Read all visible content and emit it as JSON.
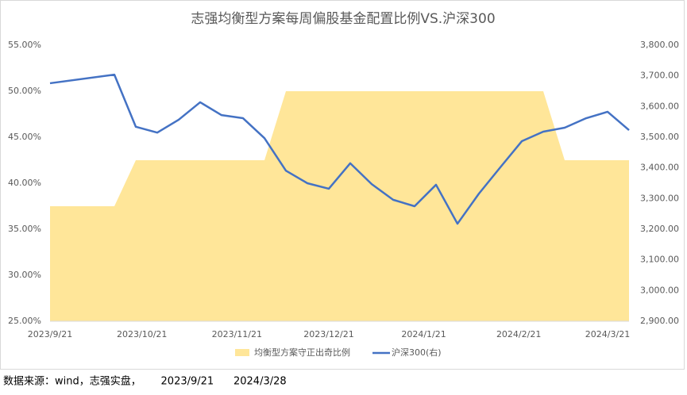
{
  "chart_data": {
    "type": "area_line",
    "title": "志强均衡型方案每周偏股基金配置比例VS.沪深300",
    "x": [
      0,
      21,
      28,
      35,
      42,
      49,
      56,
      63,
      70,
      77,
      84,
      91,
      98,
      105,
      112,
      119,
      126,
      133,
      140,
      147,
      154,
      161,
      168,
      175,
      182,
      189
    ],
    "xlim": [
      0,
      189
    ],
    "xticks": [
      {
        "value": 0,
        "label": "2023/9/21"
      },
      {
        "value": 30,
        "label": "2023/10/21"
      },
      {
        "value": 61,
        "label": "2023/11/21"
      },
      {
        "value": 91,
        "label": "2023/12/21"
      },
      {
        "value": 122,
        "label": "2024/1/21"
      },
      {
        "value": 153,
        "label": "2024/2/21"
      },
      {
        "value": 182,
        "label": "2024/3/21"
      }
    ],
    "ylim": [
      25,
      55
    ],
    "yticks": [
      {
        "value": 25,
        "label": "25.00%"
      },
      {
        "value": 30,
        "label": "30.00%"
      },
      {
        "value": 35,
        "label": "35.00%"
      },
      {
        "value": 40,
        "label": "40.00%"
      },
      {
        "value": 45,
        "label": "45.00%"
      },
      {
        "value": 50,
        "label": "50.00%"
      },
      {
        "value": 55,
        "label": "55.00%"
      }
    ],
    "y2lim": [
      2900,
      3800
    ],
    "y2ticks": [
      {
        "value": 2900,
        "label": "2,900.00"
      },
      {
        "value": 3000,
        "label": "3,000.00"
      },
      {
        "value": 3100,
        "label": "3,100.00"
      },
      {
        "value": 3200,
        "label": "3,200.00"
      },
      {
        "value": 3300,
        "label": "3,300.00"
      },
      {
        "value": 3400,
        "label": "3,400.00"
      },
      {
        "value": 3500,
        "label": "3,500.00"
      },
      {
        "value": 3600,
        "label": "3,600.00"
      },
      {
        "value": 3700,
        "label": "3,700.00"
      },
      {
        "value": 3800,
        "label": "3,800.00"
      }
    ],
    "series": [
      {
        "name": "均衡型方案守正出奇比例",
        "kind": "area",
        "color": "#ffe699",
        "values": [
          37.5,
          37.5,
          42.5,
          42.5,
          42.5,
          42.5,
          42.5,
          42.5,
          42.5,
          50,
          50,
          50,
          50,
          50,
          50,
          50,
          50,
          50,
          50,
          50,
          50,
          50,
          42.5,
          42.5,
          42.5,
          42.5
        ]
      },
      {
        "name": "沪深300(右)",
        "kind": "line",
        "axis": "y2",
        "color": "#4472c4",
        "values": [
          3676,
          3704,
          3534,
          3515,
          3557,
          3614,
          3572,
          3562,
          3497,
          3391,
          3350,
          3332,
          3415,
          3347,
          3296,
          3275,
          3345,
          3218,
          3316,
          3402,
          3487,
          3518,
          3531,
          3562,
          3583,
          3523
        ]
      }
    ],
    "footer": "数据来源：wind，志强实盘，      2023/9/21      2024/3/28"
  }
}
